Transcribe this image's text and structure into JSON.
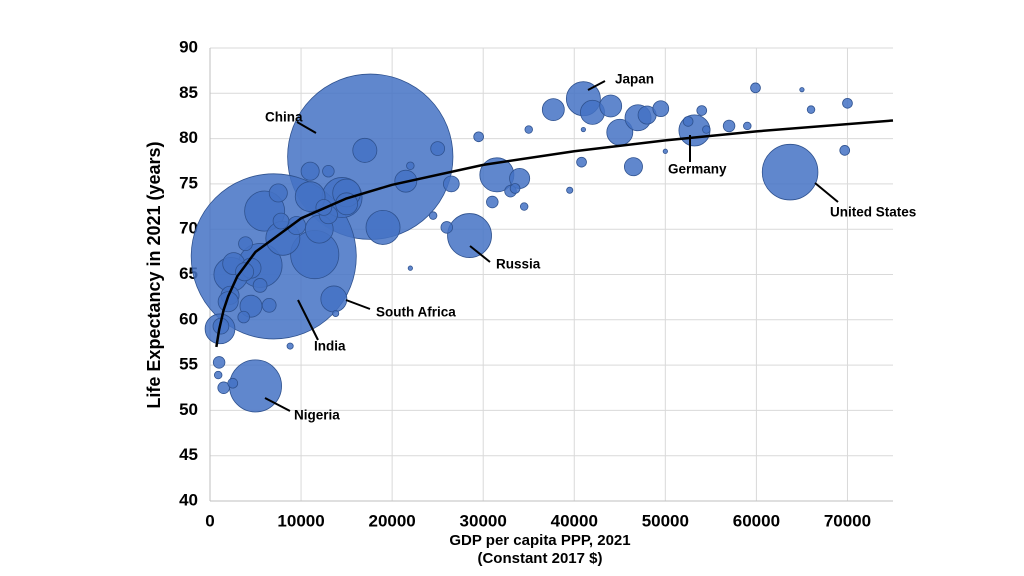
{
  "chart_data": {
    "type": "bubble",
    "xlabel": [
      "GDP per capita PPP, 2021",
      "(Constant 2017 $)"
    ],
    "ylabel": "Life Expectancy in 2021 (years)",
    "xlim": [
      0,
      75000
    ],
    "ylim": [
      40,
      90
    ],
    "xticks": [
      0,
      10000,
      20000,
      30000,
      40000,
      50000,
      60000,
      70000
    ],
    "yticks": [
      40,
      45,
      50,
      55,
      60,
      65,
      70,
      75,
      80,
      85,
      90
    ],
    "grid": true,
    "series": [
      {
        "color": "#4472c4",
        "x": [
          17600,
          7000,
          11500,
          63700,
          5000,
          5500,
          28500,
          14500,
          6000,
          41000,
          19000,
          8000,
          2300,
          31500,
          53200,
          11000,
          1100,
          12000,
          15000,
          13600,
          45000,
          47000,
          17000,
          42000,
          44000,
          37700,
          21500,
          15000,
          4500,
          2600,
          34000,
          4500,
          48000,
          46500,
          11000,
          3800,
          2200,
          9500,
          2000,
          7500,
          13000,
          49500,
          26500,
          12500,
          7800,
          1200,
          5500,
          6500,
          3900,
          25000,
          3700,
          13000,
          57000,
          26000,
          33000,
          31000,
          1500,
          1000,
          52500,
          54000,
          70000,
          59900,
          2500,
          29500,
          33500,
          40800,
          69700,
          66000,
          900,
          24500,
          35000,
          54500,
          59000,
          34500,
          22000,
          8800,
          13800,
          39500,
          22000,
          41000,
          50000,
          65000
        ],
        "values": [
          78.0,
          67.0,
          67.2,
          76.3,
          52.7,
          66.0,
          69.3,
          73.5,
          72.0,
          84.4,
          70.2,
          69.0,
          65.0,
          76.0,
          80.9,
          73.6,
          59.0,
          70.0,
          74.0,
          62.3,
          80.7,
          82.3,
          78.7,
          82.9,
          83.6,
          83.2,
          75.3,
          72.8,
          61.5,
          66.2,
          75.6,
          65.7,
          82.6,
          76.9,
          76.4,
          65.3,
          62.7,
          70.4,
          62.0,
          74.0,
          71.6,
          83.3,
          75.0,
          72.4,
          70.9,
          59.3,
          63.8,
          61.6,
          68.4,
          78.9,
          60.3,
          76.4,
          81.4,
          70.2,
          74.2,
          73.0,
          52.5,
          55.3,
          81.9,
          83.1,
          83.9,
          85.6,
          53.0,
          80.2,
          74.5,
          77.4,
          78.7,
          83.2,
          53.9,
          71.5,
          81.0,
          81.0,
          81.4,
          72.5,
          77.0,
          57.1,
          60.7,
          74.3,
          65.7,
          81.0,
          78.6,
          85.4
        ],
        "sizes": [
          1412,
          1408,
          120,
          160,
          140,
          100,
          100,
          83,
          83,
          60,
          60,
          60,
          60,
          60,
          50,
          46,
          46,
          40,
          40,
          35,
          35,
          35,
          30,
          30,
          25,
          25,
          25,
          25,
          25,
          25,
          21,
          21,
          17,
          17,
          17,
          17,
          17,
          17,
          21,
          17,
          17,
          13,
          13,
          13,
          13,
          13,
          10,
          10,
          10,
          10,
          7,
          7,
          7,
          7,
          7,
          7,
          7,
          7,
          5,
          5,
          5,
          5,
          5,
          5,
          5,
          5,
          5,
          3,
          3,
          3,
          3,
          3,
          3,
          3,
          3,
          2,
          2,
          2,
          1,
          1,
          1,
          1
        ]
      },
      {
        "color": "#000000",
        "x": [
          700,
          1000,
          1500,
          2000,
          3000,
          5000,
          10000,
          15000,
          20000,
          30000,
          40000,
          50000,
          60000,
          75000
        ],
        "values": [
          57.0,
          58.9,
          61.1,
          62.6,
          64.8,
          67.5,
          71.2,
          73.4,
          74.9,
          77.1,
          78.6,
          79.8,
          80.8,
          82.0
        ]
      }
    ],
    "annotations": [
      "Japan",
      "China",
      "Germany",
      "United States",
      "Russia",
      "South Africa",
      "India",
      "Nigeria"
    ]
  }
}
